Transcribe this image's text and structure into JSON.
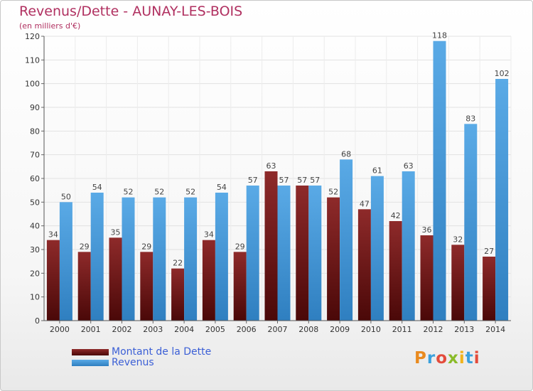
{
  "title": "Revenus/Dette - AUNAY-LES-BOIS",
  "subtitle": "(en milliers d'€)",
  "logo": {
    "text": "Proxiti",
    "colors": [
      "#e98a1f",
      "#3aa0dc",
      "#e34b3b",
      "#8abb2a",
      "#f0b31c",
      "#3aa0dc",
      "#e34b3b"
    ]
  },
  "colors": {
    "dette": "#7d1e1e",
    "revenus": "#3f95d8",
    "title": "#b03060",
    "legend_text": "#3b5fd6"
  },
  "chart_data": {
    "type": "bar",
    "title": "Revenus/Dette - AUNAY-LES-BOIS",
    "subtitle": "(en milliers d'€)",
    "categories": [
      "2000",
      "2001",
      "2002",
      "2003",
      "2004",
      "2005",
      "2006",
      "2007",
      "2008",
      "2009",
      "2010",
      "2011",
      "2012",
      "2013",
      "2014"
    ],
    "series": [
      {
        "name": "Montant de la Dette",
        "values": [
          34,
          29,
          35,
          29,
          22,
          34,
          29,
          63,
          57,
          52,
          47,
          42,
          36,
          32,
          27
        ]
      },
      {
        "name": "Revenus",
        "values": [
          50,
          54,
          52,
          52,
          52,
          54,
          57,
          57,
          57,
          68,
          61,
          63,
          118,
          83,
          102
        ]
      }
    ],
    "ylim": [
      0,
      120
    ],
    "yticks": [
      0,
      10,
      20,
      30,
      40,
      50,
      60,
      70,
      80,
      90,
      100,
      110,
      120
    ],
    "grid": true,
    "legend": "bottom-left"
  }
}
